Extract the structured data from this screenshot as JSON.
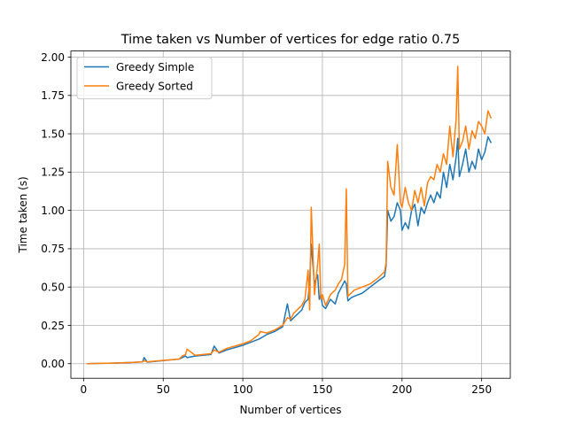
{
  "chart_data": {
    "type": "line",
    "title": "Time taken vs Number of vertices for edge ratio 0.75",
    "xlabel": "Number of vertices",
    "ylabel": "Time taken (s)",
    "xlim": [
      -8,
      268
    ],
    "ylim": [
      -0.095,
      2.04
    ],
    "xticks": [
      0,
      50,
      100,
      150,
      200,
      250
    ],
    "yticks": [
      0.0,
      0.25,
      0.5,
      0.75,
      1.0,
      1.25,
      1.5,
      1.75,
      2.0
    ],
    "ytick_labels": [
      "0.00",
      "0.25",
      "0.50",
      "0.75",
      "1.00",
      "1.25",
      "1.50",
      "1.75",
      "2.00"
    ],
    "grid": true,
    "legend_position": "top-left",
    "x": [
      2,
      10,
      20,
      30,
      37,
      38,
      40,
      50,
      60,
      62,
      64,
      65,
      70,
      75,
      80,
      82,
      85,
      90,
      100,
      105,
      110,
      111,
      115,
      120,
      125,
      128,
      130,
      132,
      135,
      137,
      139,
      141,
      142,
      143,
      145,
      147,
      148,
      149,
      150,
      152,
      155,
      158,
      160,
      162,
      164,
      165,
      166,
      168,
      170,
      175,
      180,
      185,
      189,
      190,
      191,
      193,
      195,
      197,
      199,
      200,
      202,
      204,
      206,
      208,
      210,
      212,
      214,
      216,
      218,
      220,
      222,
      224,
      226,
      228,
      230,
      232,
      234,
      235,
      236,
      238,
      240,
      242,
      244,
      246,
      248,
      250,
      252,
      254,
      256
    ],
    "series": [
      {
        "name": "Greedy Simple",
        "color": "#1f77b4",
        "values": [
          0.0,
          0.002,
          0.004,
          0.008,
          0.012,
          0.04,
          0.01,
          0.02,
          0.03,
          0.04,
          0.05,
          0.04,
          0.05,
          0.055,
          0.06,
          0.115,
          0.07,
          0.09,
          0.12,
          0.14,
          0.16,
          0.165,
          0.19,
          0.21,
          0.24,
          0.39,
          0.28,
          0.3,
          0.33,
          0.35,
          0.4,
          0.42,
          0.55,
          0.78,
          0.52,
          0.58,
          0.42,
          0.45,
          0.38,
          0.36,
          0.42,
          0.39,
          0.46,
          0.5,
          0.54,
          0.52,
          0.41,
          0.43,
          0.44,
          0.46,
          0.5,
          0.54,
          0.57,
          0.64,
          1.0,
          0.93,
          0.96,
          1.05,
          1.0,
          0.87,
          0.92,
          0.88,
          1.0,
          1.04,
          0.9,
          1.02,
          0.98,
          1.05,
          1.1,
          1.05,
          1.12,
          1.08,
          1.25,
          1.15,
          1.3,
          1.2,
          1.35,
          1.47,
          1.22,
          1.3,
          1.4,
          1.25,
          1.32,
          1.27,
          1.4,
          1.33,
          1.38,
          1.48,
          1.44
        ]
      },
      {
        "name": "Greedy Sorted",
        "color": "#ff7f0e",
        "values": [
          0.0,
          0.002,
          0.004,
          0.008,
          0.012,
          0.02,
          0.012,
          0.022,
          0.03,
          0.05,
          0.06,
          0.095,
          0.055,
          0.06,
          0.065,
          0.09,
          0.075,
          0.1,
          0.13,
          0.15,
          0.19,
          0.21,
          0.2,
          0.22,
          0.25,
          0.3,
          0.29,
          0.33,
          0.36,
          0.38,
          0.42,
          0.61,
          0.35,
          1.02,
          0.45,
          0.65,
          0.78,
          0.42,
          0.45,
          0.38,
          0.45,
          0.48,
          0.52,
          0.55,
          0.65,
          1.14,
          0.44,
          0.46,
          0.48,
          0.5,
          0.52,
          0.56,
          0.6,
          0.66,
          1.32,
          1.15,
          1.1,
          1.43,
          1.05,
          1.02,
          1.15,
          1.05,
          1.0,
          1.13,
          1.05,
          1.15,
          1.03,
          1.18,
          1.22,
          1.2,
          1.3,
          1.25,
          1.37,
          1.3,
          1.55,
          1.35,
          1.6,
          1.94,
          1.4,
          1.45,
          1.55,
          1.4,
          1.52,
          1.47,
          1.58,
          1.55,
          1.5,
          1.65,
          1.6
        ]
      }
    ]
  }
}
